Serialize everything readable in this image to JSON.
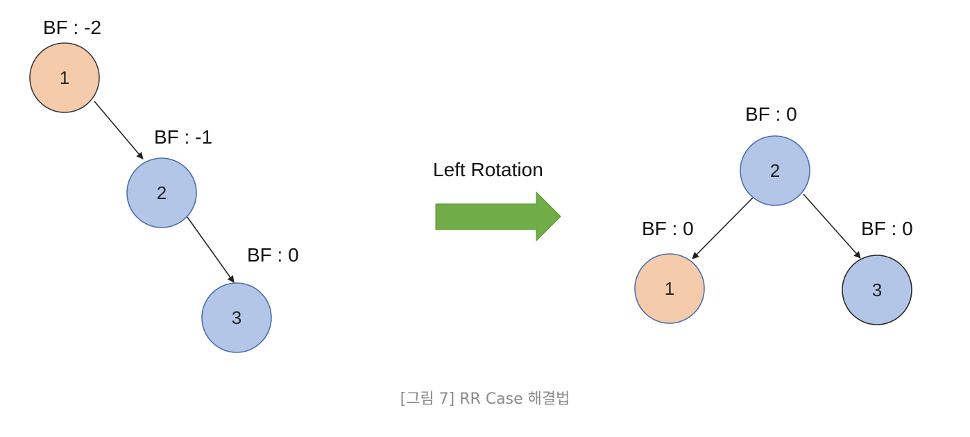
{
  "left_tree": {
    "node_1": {
      "label": "1",
      "bf": "BF : -2",
      "fill": "#f4ccac"
    },
    "node_2": {
      "label": "2",
      "bf": "BF : -1",
      "fill": "#b4c6e7"
    },
    "node_3": {
      "label": "3",
      "bf": "BF : 0",
      "fill": "#b4c6e7"
    }
  },
  "rotation": {
    "label": "Left Rotation",
    "arrow_color": "#70ad47"
  },
  "right_tree": {
    "node_2": {
      "label": "2",
      "bf": "BF : 0",
      "fill": "#b4c6e7"
    },
    "node_1": {
      "label": "1",
      "bf": "BF : 0",
      "fill": "#f4ccac"
    },
    "node_3": {
      "label": "3",
      "bf": "BF : 0",
      "fill": "#b4c6e7"
    }
  },
  "caption": "[그림 7] RR Case 해결법"
}
